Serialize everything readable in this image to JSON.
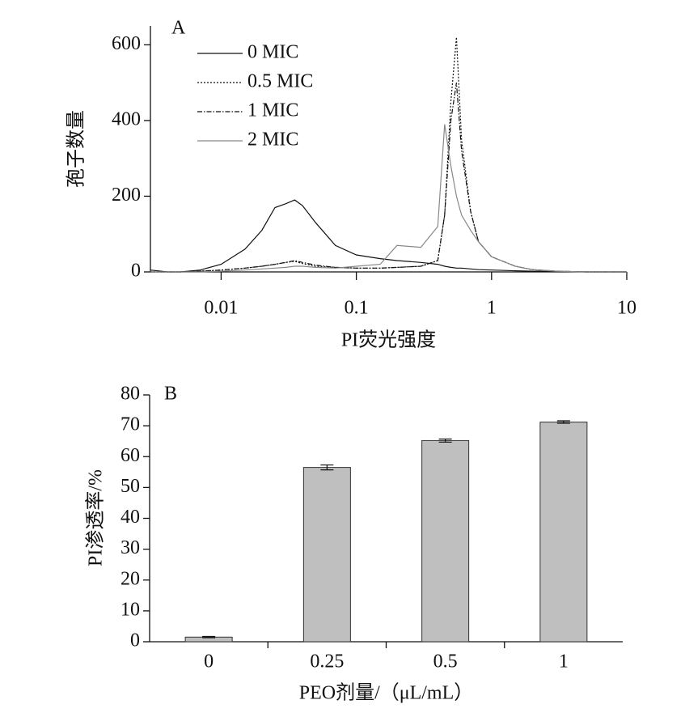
{
  "chart_data": [
    {
      "type": "line",
      "annotation": "A",
      "ylabel": "孢子数量",
      "xlabel": "PI荧光强度",
      "xscale": "log",
      "xlim": [
        0.003,
        10
      ],
      "xticks": [
        0.01,
        0.1,
        1,
        10
      ],
      "ylim": [
        0,
        650
      ],
      "yticks": [
        0,
        200,
        400,
        600
      ],
      "legend": "upper left",
      "x": [
        0.003,
        0.004,
        0.005,
        0.007,
        0.01,
        0.015,
        0.02,
        0.025,
        0.03,
        0.035,
        0.04,
        0.05,
        0.07,
        0.1,
        0.15,
        0.2,
        0.3,
        0.4,
        0.45,
        0.5,
        0.55,
        0.6,
        0.7,
        0.8,
        1,
        1.5,
        2,
        3,
        5,
        10
      ],
      "series": [
        {
          "name": "0 MIC",
          "color": "#111111",
          "style": "solid",
          "values": [
            5,
            0,
            0,
            5,
            20,
            60,
            110,
            170,
            180,
            190,
            175,
            130,
            70,
            45,
            35,
            30,
            25,
            20,
            15,
            12,
            10,
            10,
            8,
            6,
            5,
            3,
            2,
            1,
            0,
            0
          ]
        },
        {
          "name": "0.5 MIC",
          "color": "#111111",
          "style": "dotted",
          "values": [
            0,
            0,
            0,
            2,
            5,
            10,
            15,
            20,
            25,
            28,
            22,
            15,
            12,
            10,
            10,
            12,
            15,
            30,
            150,
            450,
            620,
            350,
            160,
            80,
            40,
            15,
            6,
            2,
            0,
            0
          ]
        },
        {
          "name": "1 MIC",
          "color": "#111111",
          "style": "dashdot",
          "values": [
            0,
            0,
            0,
            2,
            5,
            10,
            15,
            20,
            25,
            30,
            25,
            18,
            12,
            10,
            10,
            12,
            15,
            30,
            150,
            400,
            500,
            320,
            160,
            80,
            40,
            15,
            6,
            2,
            0,
            0
          ]
        },
        {
          "name": "2 MIC",
          "color": "#888888",
          "style": "solid",
          "values": [
            0,
            0,
            0,
            0,
            2,
            5,
            8,
            10,
            12,
            15,
            15,
            12,
            10,
            15,
            20,
            70,
            65,
            120,
            390,
            280,
            200,
            150,
            110,
            80,
            40,
            15,
            6,
            2,
            0,
            0
          ]
        }
      ]
    },
    {
      "type": "bar",
      "annotation": "B",
      "ylabel": "PI渗透率/%",
      "xlabel": "PEO剂量/（μL/mL）",
      "categories": [
        "0",
        "0.25",
        "0.5",
        "1"
      ],
      "values": [
        1.5,
        56.5,
        65.2,
        71.2
      ],
      "errors": [
        0.2,
        0.8,
        0.5,
        0.4
      ],
      "color": "#bfbfbf",
      "ylim": [
        0,
        80
      ],
      "yticks": [
        0,
        10,
        20,
        30,
        40,
        50,
        60,
        70,
        80
      ]
    }
  ]
}
